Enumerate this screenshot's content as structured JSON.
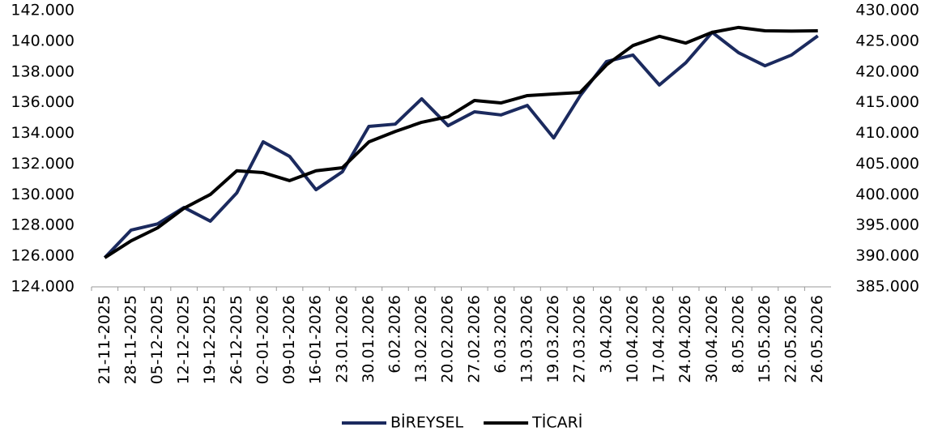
{
  "chart_data": {
    "type": "line",
    "categories": [
      "21-11-2025",
      "28-11-2025",
      "05-12-2025",
      "12-12-2025",
      "19-12-2025",
      "26-12-2025",
      "02-01-2026",
      "09-01-2026",
      "16-01-2026",
      "23.01.2026",
      "30.01.2026",
      "6.02.2026",
      "13.02.2026",
      "20.02.2026",
      "27.02.2026",
      "6.03.2026",
      "13.03.2026",
      "19.03.2026",
      "27.03.2026",
      "3.04.2026",
      "10.04.2026",
      "17.04.2026",
      "24.04.2026",
      "30.04.2026",
      "8.05.2026",
      "15.05.2026",
      "22.05.2026",
      "26.05.2026"
    ],
    "series": [
      {
        "name": "BİREYSEL",
        "color": "#1b2a5e",
        "values": [
          125900,
          127700,
          128100,
          129170,
          128280,
          130120,
          133450,
          132500,
          130330,
          131500,
          134450,
          134600,
          136250,
          134500,
          135400,
          135200,
          135820,
          133700,
          136450,
          138680,
          139100,
          137150,
          138600,
          140580,
          139250,
          138400,
          139100,
          140350
        ]
      },
      {
        "name": "TİCARİ",
        "color": "#000000",
        "axis": "y2",
        "values": [
          389750,
          392500,
          394600,
          397800,
          400050,
          403900,
          403600,
          402300,
          403900,
          404400,
          408600,
          410300,
          411800,
          412700,
          415350,
          414950,
          416150,
          416400,
          416650,
          421150,
          424300,
          425800,
          424700,
          426450,
          427250,
          426700,
          426650,
          426700
        ]
      }
    ],
    "ylim": [
      124000,
      142000
    ],
    "yticks": [
      {
        "value": 124000,
        "label": "124.000"
      },
      {
        "value": 126000,
        "label": "126.000"
      },
      {
        "value": 128000,
        "label": "128.000"
      },
      {
        "value": 130000,
        "label": "130.000"
      },
      {
        "value": 132000,
        "label": "132.000"
      },
      {
        "value": 134000,
        "label": "134.000"
      },
      {
        "value": 136000,
        "label": "136.000"
      },
      {
        "value": 138000,
        "label": "138.000"
      },
      {
        "value": 140000,
        "label": "140.000"
      },
      {
        "value": 142000,
        "label": "142.000"
      }
    ],
    "y2lim": [
      385000,
      430000
    ],
    "y2ticks": [
      {
        "value": 385000,
        "label": "385.000"
      },
      {
        "value": 390000,
        "label": "390.000"
      },
      {
        "value": 395000,
        "label": "395.000"
      },
      {
        "value": 400000,
        "label": "400.000"
      },
      {
        "value": 405000,
        "label": "405.000"
      },
      {
        "value": 410000,
        "label": "410.000"
      },
      {
        "value": 415000,
        "label": "415.000"
      },
      {
        "value": 420000,
        "label": "420.000"
      },
      {
        "value": 425000,
        "label": "425.000"
      },
      {
        "value": 430000,
        "label": "430.000"
      }
    ],
    "legend": "bottom"
  }
}
